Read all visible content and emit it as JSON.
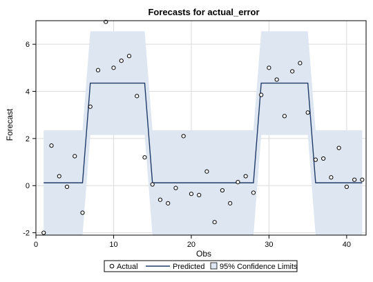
{
  "chart_data": {
    "type": "line",
    "title": "Forecasts for actual_error",
    "xlabel": "Obs",
    "ylabel": "Forecast",
    "xlim": [
      0,
      42.5
    ],
    "ylim": [
      -2.1,
      7.0
    ],
    "xticks": [
      0,
      10,
      20,
      30,
      40
    ],
    "yticks": [
      -2,
      0,
      2,
      4,
      6
    ],
    "grid": true,
    "legend_position": "bottom",
    "legend": {
      "actual": "Actual",
      "predicted": "Predicted",
      "limits": "95% Confidence Limits"
    },
    "colors": {
      "band": "#dde6f1",
      "line": "#1f3a68",
      "marker_edge": "#000000",
      "grid": "#dadada",
      "frame": "#000000"
    },
    "actual": {
      "x": [
        1,
        2,
        3,
        4,
        5,
        6,
        7,
        8,
        9,
        10,
        11,
        12,
        13,
        14,
        15,
        16,
        17,
        18,
        19,
        20,
        21,
        22,
        23,
        24,
        25,
        26,
        27,
        28,
        29,
        30,
        31,
        32,
        33,
        34,
        35,
        36,
        37,
        38,
        39,
        40,
        41,
        42
      ],
      "y": [
        -2.0,
        1.7,
        0.4,
        -0.05,
        1.25,
        -1.15,
        3.35,
        4.9,
        6.95,
        5.0,
        5.3,
        5.5,
        3.8,
        1.2,
        0.05,
        -0.6,
        -0.75,
        -0.1,
        2.1,
        -0.35,
        -0.4,
        0.6,
        -1.55,
        -0.2,
        -0.75,
        0.15,
        0.4,
        -0.3,
        3.85,
        5.0,
        4.5,
        2.95,
        4.85,
        5.2,
        3.1,
        1.1,
        1.15,
        0.35,
        1.6,
        -0.05,
        0.25,
        0.25
      ]
    },
    "predicted": {
      "x": [
        1,
        6,
        7,
        14,
        15,
        28,
        29,
        35,
        36,
        42
      ],
      "y": [
        0.12,
        0.12,
        4.35,
        4.35,
        0.12,
        0.12,
        4.35,
        4.35,
        0.12,
        0.12
      ]
    },
    "confidence_limits": {
      "x": [
        1,
        6,
        7,
        14,
        15,
        28,
        29,
        35,
        36,
        42
      ],
      "lower": [
        -2.1,
        -2.1,
        2.15,
        2.15,
        -2.1,
        -2.1,
        2.15,
        2.15,
        -2.1,
        -2.1
      ],
      "upper": [
        2.35,
        2.35,
        6.55,
        6.55,
        2.35,
        2.35,
        6.55,
        6.55,
        2.35,
        2.35
      ]
    }
  }
}
